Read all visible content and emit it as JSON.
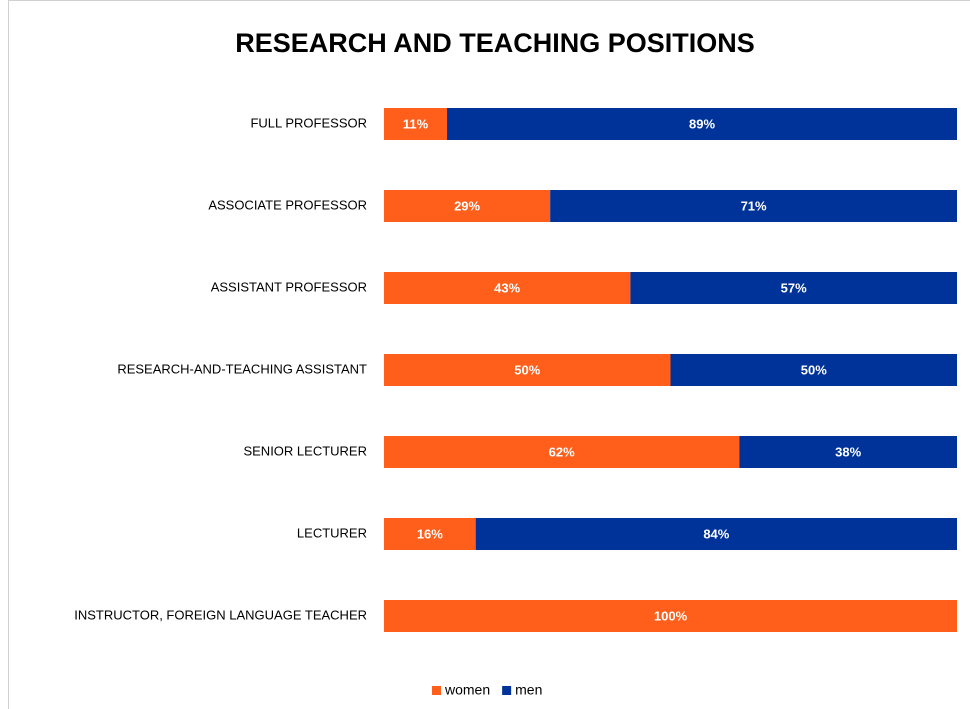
{
  "chart_data": {
    "type": "stacked-bar-horizontal",
    "title": "RESEARCH AND TEACHING POSITIONS",
    "categories": [
      "FULL PROFESSOR",
      "ASSOCIATE PROFESSOR",
      "ASSISTANT PROFESSOR",
      "RESEARCH-AND-TEACHING ASSISTANT",
      "SENIOR LECTURER",
      "LECTURER",
      "INSTRUCTOR, FOREIGN LANGUAGE TEACHER"
    ],
    "series": [
      {
        "name": "women",
        "color": "#ff5f1a",
        "values": [
          11,
          29,
          43,
          50,
          62,
          16,
          100
        ],
        "value_labels": [
          "11%",
          "29%",
          "43%",
          "50%",
          "62%",
          "16%",
          "100%"
        ]
      },
      {
        "name": "men",
        "color": "#00339a",
        "values": [
          89,
          71,
          57,
          50,
          38,
          84,
          0
        ],
        "value_labels": [
          "89%",
          "71%",
          "57%",
          "50%",
          "38%",
          "84%",
          null
        ]
      }
    ],
    "xlim": [
      0,
      100
    ],
    "legend": "bottom"
  }
}
